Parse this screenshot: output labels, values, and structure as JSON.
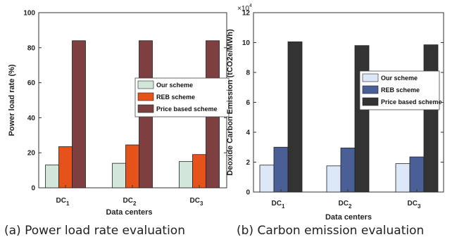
{
  "captions": [
    "(a) Power load rate evaluation",
    "(b) Carbon emission evaluation"
  ],
  "chart_data": [
    {
      "type": "bar",
      "categories": [
        "DC1",
        "DC2",
        "DC3"
      ],
      "category_labels": [
        {
          "base": "DC",
          "sub": "1"
        },
        {
          "base": "DC",
          "sub": "2"
        },
        {
          "base": "DC",
          "sub": "3"
        }
      ],
      "xlabel": "Data centers",
      "ylabel": "Power load rate (%)",
      "ylim": [
        0,
        100
      ],
      "yticks": [
        0,
        20,
        40,
        60,
        80,
        100
      ],
      "grid": false,
      "legend_position": "center-right",
      "series": [
        {
          "name": "Our scheme",
          "color": "#d2e6da",
          "values": [
            13,
            14,
            15
          ]
        },
        {
          "name": "REB scheme",
          "color": "#e5531a",
          "values": [
            23.5,
            24.5,
            19
          ]
        },
        {
          "name": "Price based scheme",
          "color": "#7e3f41",
          "values": [
            84,
            84,
            84
          ]
        }
      ]
    },
    {
      "type": "bar",
      "categories": [
        "DC1",
        "DC2",
        "DC3"
      ],
      "category_labels": [
        {
          "base": "DC",
          "sub": "1"
        },
        {
          "base": "DC",
          "sub": "2"
        },
        {
          "base": "DC",
          "sub": "3"
        }
      ],
      "xlabel": "Data centers",
      "ylabel": "Deoxide Carbon Emission (tCO2e/MWh)",
      "ylim": [
        0,
        12
      ],
      "yticks": [
        0,
        2,
        4,
        6,
        8,
        10,
        12
      ],
      "scale_multiplier": {
        "base": "×10",
        "exp": "4"
      },
      "grid": false,
      "legend_position": "center-right",
      "series": [
        {
          "name": "Our scheme",
          "color": "#dce8f8",
          "values": [
            1.8,
            1.75,
            1.9
          ]
        },
        {
          "name": "REB scheme",
          "color": "#4a5f96",
          "values": [
            3.0,
            2.95,
            2.35
          ]
        },
        {
          "name": "Price based scheme",
          "color": "#333333",
          "values": [
            10.05,
            9.8,
            9.85
          ]
        }
      ]
    }
  ]
}
